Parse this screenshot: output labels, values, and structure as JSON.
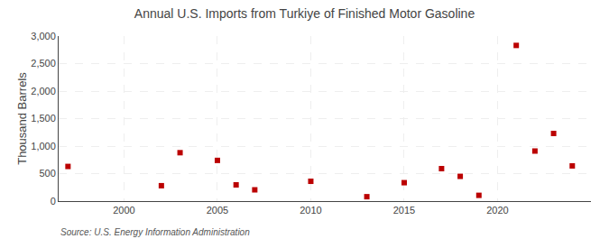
{
  "chart_data": {
    "type": "scatter",
    "title": "Annual U.S. Imports from Turkiye of Finished Motor Gasoline",
    "y_label": "Thousand Barrels",
    "annotations": [
      "Source: U.S. Energy Information Administration"
    ],
    "x": [
      1997,
      2002,
      2003,
      2005,
      2006,
      2007,
      2010,
      2013,
      2015,
      2017,
      2018,
      2019,
      2021,
      2022,
      2023,
      2024
    ],
    "values": [
      630,
      280,
      880,
      740,
      295,
      205,
      360,
      80,
      335,
      590,
      450,
      105,
      2830,
      910,
      1230,
      640
    ],
    "color": "#bb0000",
    "marker": "square",
    "xlim": [
      1996.5,
      2025
    ],
    "xticks": [
      2000,
      2005,
      2010,
      2015,
      2020
    ],
    "ylim": [
      0,
      3000
    ],
    "yticks": [
      0,
      500,
      {
        "value": 1000,
        "label": "1,000"
      },
      {
        "value": 1500,
        "label": "1,500"
      },
      {
        "value": 2000,
        "label": "2,000"
      },
      {
        "value": 2500,
        "label": "2,500"
      },
      {
        "value": 3000,
        "label": "3,000"
      }
    ],
    "grid": true
  }
}
